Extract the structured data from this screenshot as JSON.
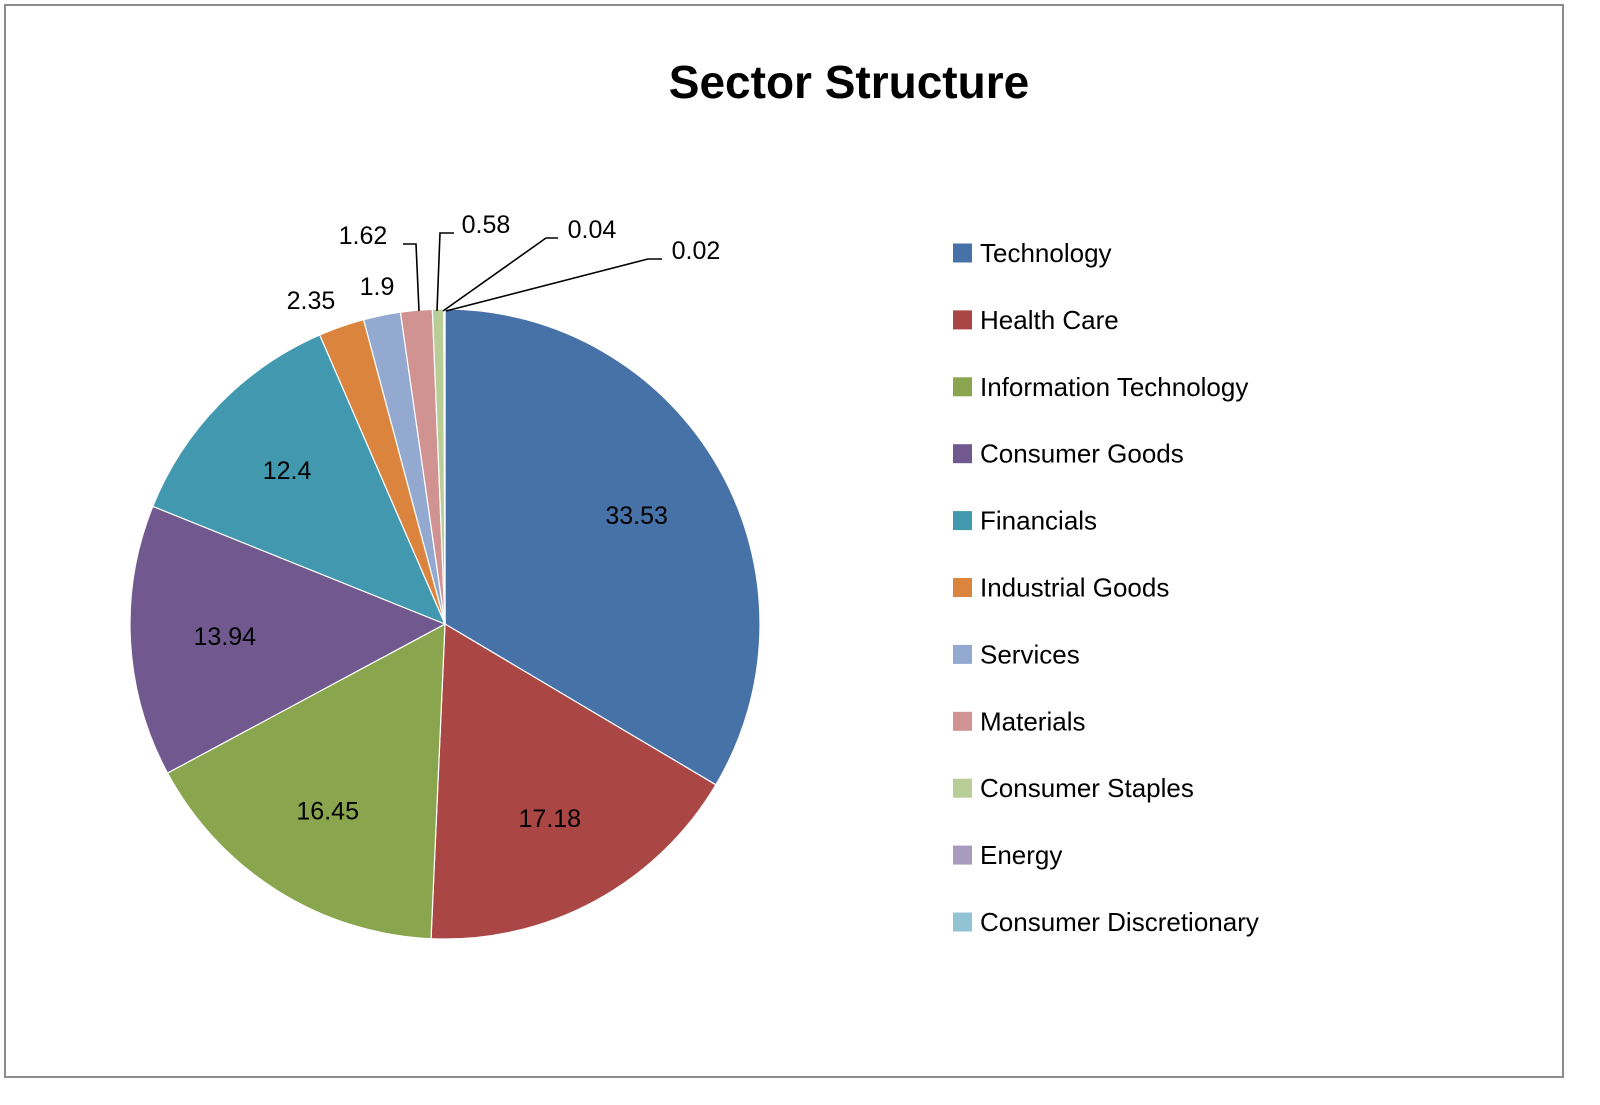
{
  "chart_data": {
    "type": "pie",
    "title": "Sector Structure",
    "legend_position": "right",
    "slices": [
      {
        "label": "Technology",
        "value": 33.53,
        "display": "33.53",
        "color": "#4672A8"
      },
      {
        "label": "Health Care",
        "value": 17.18,
        "display": "17.18",
        "color": "#AA4644"
      },
      {
        "label": "Information Technology",
        "value": 16.45,
        "display": "16.45",
        "color": "#89A54E"
      },
      {
        "label": "Consumer Goods",
        "value": 13.94,
        "display": "13.94",
        "color": "#71588F"
      },
      {
        "label": "Financials",
        "value": 12.4,
        "display": "12.4",
        "color": "#4198AF"
      },
      {
        "label": "Industrial Goods",
        "value": 2.35,
        "display": "2.35",
        "color": "#DB843D"
      },
      {
        "label": "Services",
        "value": 1.9,
        "display": "1.9",
        "color": "#93A9CF"
      },
      {
        "label": "Materials",
        "value": 1.62,
        "display": "1.62",
        "color": "#D19392"
      },
      {
        "label": "Consumer Staples",
        "value": 0.58,
        "display": "0.58",
        "color": "#B9CD96"
      },
      {
        "label": "Energy",
        "value": 0.04,
        "display": "0.04",
        "color": "#A99BBD"
      },
      {
        "label": "Consumer Discretionary",
        "value": 0.02,
        "display": "0.02",
        "color": "#91C3D5"
      }
    ]
  }
}
